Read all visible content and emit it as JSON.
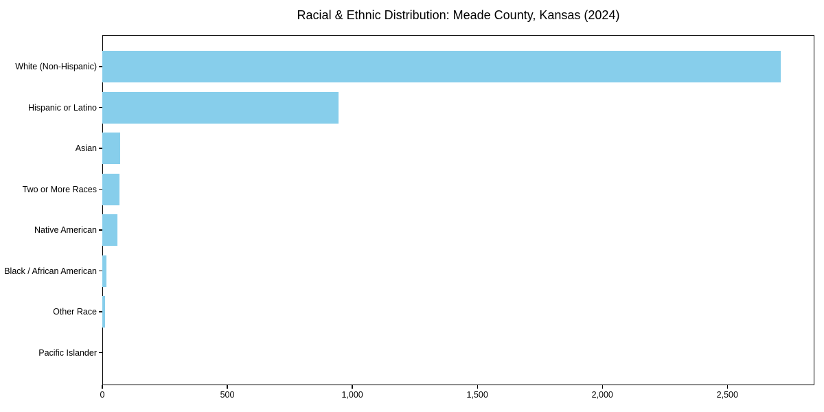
{
  "chart_data": {
    "type": "bar",
    "orientation": "horizontal",
    "title": "Racial & Ethnic Distribution: Meade County, Kansas (2024)",
    "categories": [
      "White (Non-Hispanic)",
      "Hispanic or Latino",
      "Asian",
      "Two or More Races",
      "Native American",
      "Black / African American",
      "Other Race",
      "Pacific Islander"
    ],
    "values": [
      2712,
      945,
      70,
      68,
      60,
      16,
      12,
      0
    ],
    "xlabel": "",
    "ylabel": "",
    "xlim": [
      0,
      2848
    ],
    "xticks": {
      "values": [
        0,
        500,
        1000,
        1500,
        2000,
        2500
      ],
      "labels": [
        "0",
        "500",
        "1,000",
        "1,500",
        "2,000",
        "2,500"
      ]
    },
    "bar_color": "#87CEEB",
    "text_color": "#000000",
    "spine_color": "#000000",
    "background_color": "#ffffff",
    "grid": false,
    "legend": null
  }
}
